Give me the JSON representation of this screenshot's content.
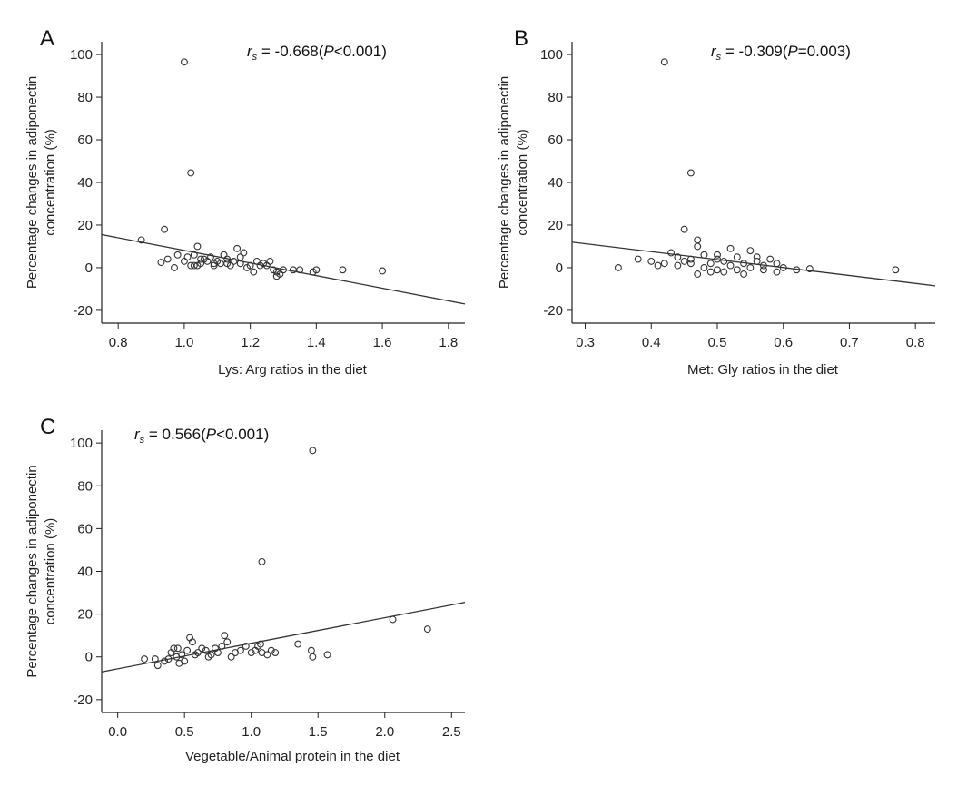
{
  "chart_data": [
    {
      "type": "scatter",
      "panel_label": "A",
      "xlabel": "Lys: Arg ratios in the diet",
      "ylabel_lines": [
        "Percentage changes in adiponectin",
        "concentration (%)"
      ],
      "stat": {
        "symbol": "r",
        "sub": "s",
        "text": " = -0.668(",
        "p": "P",
        "ptext": "<0.001)"
      },
      "xlim": [
        0.75,
        1.85
      ],
      "ylim": [
        -26,
        106
      ],
      "xticks": [
        0.8,
        1.0,
        1.2,
        1.4,
        1.6,
        1.8
      ],
      "xtick_labels": [
        "0.8",
        "1.0",
        "1.2",
        "1.4",
        "1.6",
        "1.8"
      ],
      "yticks": [
        -20,
        0,
        20,
        40,
        60,
        80,
        100
      ],
      "ytick_labels": [
        "-20",
        "0",
        "20",
        "40",
        "60",
        "80",
        "100"
      ],
      "fit_line": {
        "x": [
          0.75,
          1.85
        ],
        "y": [
          15.5,
          -17
        ]
      },
      "points": [
        [
          0.87,
          13
        ],
        [
          0.94,
          18
        ],
        [
          0.93,
          2.5
        ],
        [
          0.95,
          4
        ],
        [
          0.97,
          0
        ],
        [
          0.98,
          6
        ],
        [
          1.0,
          96.5
        ],
        [
          1.02,
          44.5
        ],
        [
          1.0,
          3
        ],
        [
          1.01,
          5
        ],
        [
          1.02,
          1
        ],
        [
          1.03,
          6
        ],
        [
          1.04,
          10
        ],
        [
          1.04,
          1
        ],
        [
          1.05,
          2
        ],
        [
          1.06,
          4
        ],
        [
          1.07,
          3
        ],
        [
          1.08,
          5
        ],
        [
          1.09,
          1
        ],
        [
          1.1,
          3
        ],
        [
          1.11,
          2
        ],
        [
          1.12,
          6
        ],
        [
          1.13,
          4
        ],
        [
          1.14,
          1
        ],
        [
          1.15,
          3
        ],
        [
          1.16,
          9
        ],
        [
          1.17,
          5
        ],
        [
          1.17,
          2
        ],
        [
          1.18,
          7
        ],
        [
          1.19,
          0
        ],
        [
          1.2,
          1
        ],
        [
          1.21,
          -2
        ],
        [
          1.22,
          3
        ],
        [
          1.23,
          1
        ],
        [
          1.24,
          2
        ],
        [
          1.25,
          1
        ],
        [
          1.26,
          3
        ],
        [
          1.27,
          -1
        ],
        [
          1.28,
          -4
        ],
        [
          1.28,
          -2
        ],
        [
          1.29,
          -3
        ],
        [
          1.3,
          -1
        ],
        [
          1.33,
          -1
        ],
        [
          1.35,
          -1
        ],
        [
          1.39,
          -2
        ],
        [
          1.4,
          -1
        ],
        [
          1.48,
          -1
        ],
        [
          1.6,
          -1.5
        ],
        [
          1.03,
          1
        ],
        [
          1.05,
          4
        ],
        [
          1.09,
          2
        ],
        [
          1.13,
          2
        ]
      ]
    },
    {
      "type": "scatter",
      "panel_label": "B",
      "xlabel": "Met: Gly ratios in the diet",
      "ylabel_lines": [
        "Percentage changes in adiponectin",
        "concentration (%)"
      ],
      "stat": {
        "symbol": "r",
        "sub": "s",
        "text": " = -0.309(",
        "p": "P",
        "ptext": "=0.003)"
      },
      "xlim": [
        0.28,
        0.83
      ],
      "ylim": [
        -26,
        106
      ],
      "xticks": [
        0.3,
        0.4,
        0.5,
        0.6,
        0.7,
        0.8
      ],
      "xtick_labels": [
        "0.3",
        "0.4",
        "0.5",
        "0.6",
        "0.7",
        "0.8"
      ],
      "yticks": [
        -20,
        0,
        20,
        40,
        60,
        80,
        100
      ],
      "ytick_labels": [
        "-20",
        "0",
        "20",
        "40",
        "60",
        "80",
        "100"
      ],
      "fit_line": {
        "x": [
          0.28,
          0.83
        ],
        "y": [
          12,
          -8.5
        ]
      },
      "points": [
        [
          0.42,
          96.5
        ],
        [
          0.46,
          44.5
        ],
        [
          0.45,
          18
        ],
        [
          0.47,
          13
        ],
        [
          0.47,
          10
        ],
        [
          0.35,
          0
        ],
        [
          0.38,
          4
        ],
        [
          0.4,
          3
        ],
        [
          0.41,
          1
        ],
        [
          0.42,
          2
        ],
        [
          0.43,
          7
        ],
        [
          0.44,
          5
        ],
        [
          0.44,
          1
        ],
        [
          0.45,
          3
        ],
        [
          0.46,
          4
        ],
        [
          0.47,
          -3
        ],
        [
          0.48,
          6
        ],
        [
          0.49,
          2
        ],
        [
          0.5,
          -1
        ],
        [
          0.5,
          4
        ],
        [
          0.51,
          3
        ],
        [
          0.51,
          -2
        ],
        [
          0.52,
          9
        ],
        [
          0.52,
          1
        ],
        [
          0.53,
          5
        ],
        [
          0.53,
          -1
        ],
        [
          0.54,
          2
        ],
        [
          0.55,
          8
        ],
        [
          0.55,
          0
        ],
        [
          0.56,
          3
        ],
        [
          0.57,
          1
        ],
        [
          0.57,
          -1
        ],
        [
          0.58,
          4
        ],
        [
          0.59,
          2
        ],
        [
          0.59,
          -2
        ],
        [
          0.6,
          0
        ],
        [
          0.62,
          -1
        ],
        [
          0.64,
          -0.5
        ],
        [
          0.77,
          -1
        ],
        [
          0.48,
          0
        ],
        [
          0.5,
          6
        ],
        [
          0.46,
          2
        ],
        [
          0.54,
          -3
        ],
        [
          0.56,
          5
        ],
        [
          0.49,
          -2
        ]
      ]
    },
    {
      "type": "scatter",
      "panel_label": "C",
      "xlabel": "Vegetable/Animal protein in the diet",
      "ylabel_lines": [
        "Percentage changes in adiponectin",
        "concentration (%)"
      ],
      "stat": {
        "symbol": "r",
        "sub": "s",
        "text": " = 0.566(",
        "p": "P",
        "ptext": "<0.001)"
      },
      "xlim": [
        -0.12,
        2.6
      ],
      "ylim": [
        -26,
        106
      ],
      "xticks": [
        0.0,
        0.5,
        1.0,
        1.5,
        2.0,
        2.5
      ],
      "xtick_labels": [
        "0.0",
        "0.5",
        "1.0",
        "1.5",
        "2.0",
        "2.5"
      ],
      "yticks": [
        -20,
        0,
        20,
        40,
        60,
        80,
        100
      ],
      "ytick_labels": [
        "-20",
        "0",
        "20",
        "40",
        "60",
        "80",
        "100"
      ],
      "fit_line": {
        "x": [
          -0.12,
          2.6
        ],
        "y": [
          -7,
          25.5
        ]
      },
      "points": [
        [
          1.46,
          96.5
        ],
        [
          1.08,
          44.5
        ],
        [
          2.06,
          17.5
        ],
        [
          2.32,
          13
        ],
        [
          1.35,
          6
        ],
        [
          1.07,
          6
        ],
        [
          1.05,
          5
        ],
        [
          0.2,
          -1
        ],
        [
          0.28,
          -1
        ],
        [
          0.3,
          -4
        ],
        [
          0.35,
          -2
        ],
        [
          0.38,
          -1
        ],
        [
          0.4,
          2
        ],
        [
          0.42,
          4
        ],
        [
          0.44,
          0
        ],
        [
          0.46,
          -3
        ],
        [
          0.48,
          1
        ],
        [
          0.5,
          -2
        ],
        [
          0.52,
          3
        ],
        [
          0.54,
          9
        ],
        [
          0.56,
          7
        ],
        [
          0.58,
          1
        ],
        [
          0.6,
          2
        ],
        [
          0.63,
          4
        ],
        [
          0.66,
          3
        ],
        [
          0.7,
          1
        ],
        [
          0.73,
          4
        ],
        [
          0.75,
          2
        ],
        [
          0.78,
          5
        ],
        [
          0.8,
          10
        ],
        [
          0.82,
          7
        ],
        [
          0.85,
          0
        ],
        [
          0.88,
          2
        ],
        [
          0.92,
          3
        ],
        [
          0.96,
          5
        ],
        [
          1.0,
          2
        ],
        [
          1.03,
          3
        ],
        [
          1.08,
          2
        ],
        [
          1.12,
          1
        ],
        [
          1.15,
          3
        ],
        [
          1.18,
          2
        ],
        [
          1.46,
          0
        ],
        [
          1.45,
          3
        ],
        [
          1.57,
          1
        ],
        [
          0.45,
          4
        ],
        [
          0.68,
          0
        ]
      ]
    }
  ]
}
